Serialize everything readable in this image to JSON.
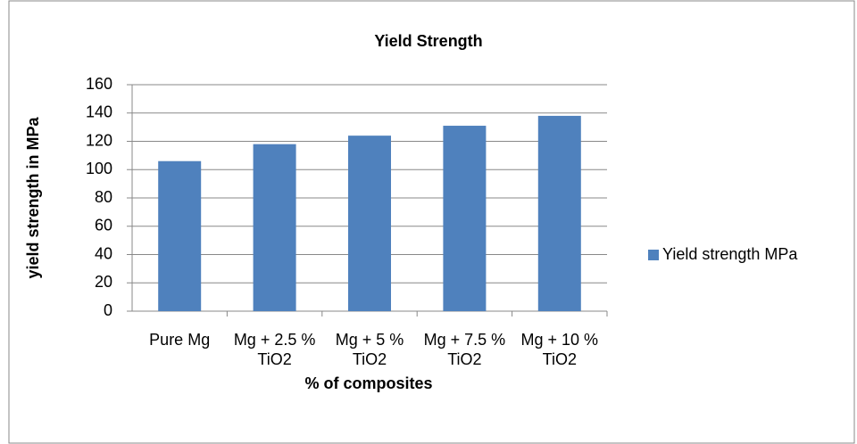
{
  "chart_data": {
    "type": "bar",
    "title": "Yield Strength",
    "x_label": "%  of composites",
    "y_label": "yield strength in MPa",
    "categories": [
      "Pure Mg",
      "Mg + 2.5 % TiO2",
      "Mg + 5 % TiO2",
      "Mg + 7.5 % TiO2",
      "Mg + 10 % TiO2"
    ],
    "series": [
      {
        "name": "Yield strength MPa",
        "color": "#4f81bd",
        "values": [
          106,
          118,
          124,
          131,
          138
        ]
      }
    ],
    "ylim": [
      0,
      160
    ],
    "yticks": [
      0,
      20,
      40,
      60,
      80,
      100,
      120,
      140,
      160
    ],
    "grid": true,
    "legend": "right"
  }
}
